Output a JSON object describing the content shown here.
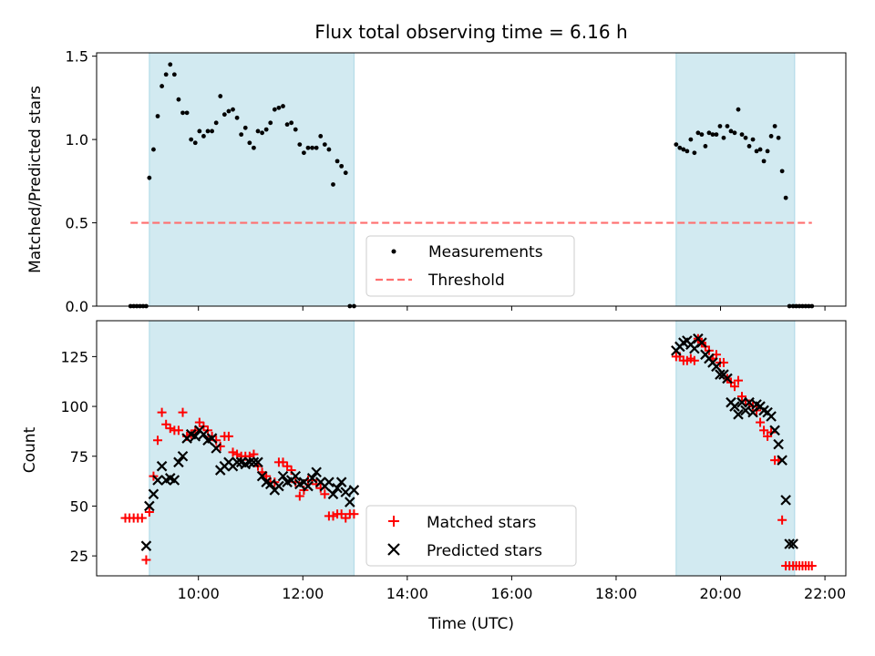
{
  "figure": {
    "title": "Flux total observing time = 6.16 h"
  },
  "colors": {
    "band": "#add8e6",
    "threshold": "#ff6f6f",
    "measurement": "#000000",
    "matched": "#ff0000",
    "predicted": "#000000"
  },
  "chart_data": [
    {
      "type": "scatter",
      "ylabel": "Matched/Predicted stars",
      "xlabel": "",
      "xlim": [
        8.05,
        22.4
      ],
      "ylim": [
        0.0,
        1.52
      ],
      "yticks": [
        0.0,
        0.5,
        1.0,
        1.5
      ],
      "ytick_labels": [
        "0.0",
        "0.5",
        "1.0",
        "1.5"
      ],
      "xticks": [
        10,
        12,
        14,
        16,
        18,
        20,
        22
      ],
      "grid": false,
      "legend_position": "bottom-center",
      "legend": [
        "Measurements",
        "Threshold"
      ],
      "shaded_intervals": [
        [
          9.06,
          12.98
        ],
        [
          19.15,
          21.42
        ]
      ],
      "threshold": {
        "name": "Threshold",
        "y": 0.5,
        "x": [
          8.7,
          21.75
        ]
      },
      "series": [
        {
          "name": "Measurements",
          "marker": "dot",
          "x": [
            8.7,
            8.76,
            8.82,
            8.88,
            8.94,
            9.0,
            9.06,
            9.14,
            9.22,
            9.3,
            9.38,
            9.46,
            9.54,
            9.62,
            9.7,
            9.78,
            9.86,
            9.94,
            10.02,
            10.1,
            10.18,
            10.26,
            10.34,
            10.42,
            10.5,
            10.58,
            10.66,
            10.74,
            10.82,
            10.9,
            10.98,
            11.06,
            11.14,
            11.22,
            11.3,
            11.38,
            11.46,
            11.54,
            11.62,
            11.7,
            11.78,
            11.86,
            11.94,
            12.02,
            12.1,
            12.18,
            12.26,
            12.34,
            12.42,
            12.5,
            12.58,
            12.66,
            12.74,
            12.82,
            12.9,
            12.98,
            19.15,
            19.22,
            19.29,
            19.36,
            19.43,
            19.5,
            19.57,
            19.64,
            19.71,
            19.78,
            19.85,
            19.92,
            19.99,
            20.06,
            20.13,
            20.2,
            20.27,
            20.34,
            20.41,
            20.48,
            20.55,
            20.62,
            20.69,
            20.76,
            20.83,
            20.9,
            20.97,
            21.04,
            21.11,
            21.18,
            21.25,
            21.32,
            21.39,
            21.45,
            21.51,
            21.57,
            21.63,
            21.69,
            21.75
          ],
          "y": [
            0.0,
            0.0,
            0.0,
            0.0,
            0.0,
            0.0,
            0.77,
            0.94,
            1.14,
            1.32,
            1.39,
            1.45,
            1.39,
            1.24,
            1.16,
            1.16,
            1.0,
            0.98,
            1.05,
            1.02,
            1.05,
            1.05,
            1.1,
            1.26,
            1.15,
            1.17,
            1.18,
            1.13,
            1.03,
            1.07,
            0.98,
            0.95,
            1.05,
            1.04,
            1.06,
            1.1,
            1.18,
            1.19,
            1.2,
            1.09,
            1.1,
            1.06,
            0.97,
            0.92,
            0.95,
            0.95,
            0.95,
            1.02,
            0.97,
            0.94,
            0.73,
            0.87,
            0.84,
            0.8,
            0.0,
            0.0,
            0.97,
            0.95,
            0.94,
            0.93,
            1.0,
            0.92,
            1.04,
            1.03,
            0.96,
            1.04,
            1.03,
            1.03,
            1.08,
            1.01,
            1.08,
            1.05,
            1.04,
            1.18,
            1.03,
            1.01,
            0.96,
            1.0,
            0.93,
            0.94,
            0.87,
            0.93,
            1.02,
            1.08,
            1.01,
            0.81,
            0.65,
            0.0,
            0.0,
            0.0,
            0.0,
            0.0,
            0.0,
            0.0,
            0.0
          ]
        }
      ]
    },
    {
      "type": "scatter",
      "ylabel": "Count",
      "xlabel": "Time (UTC)",
      "xlim": [
        8.05,
        22.4
      ],
      "ylim": [
        15,
        143
      ],
      "yticks": [
        25,
        50,
        75,
        100,
        125
      ],
      "ytick_labels": [
        "25",
        "50",
        "75",
        "100",
        "125"
      ],
      "xticks": [
        10,
        12,
        14,
        16,
        18,
        20,
        22
      ],
      "xtick_labels": [
        "10:00",
        "12:00",
        "14:00",
        "16:00",
        "18:00",
        "20:00",
        "22:00"
      ],
      "grid": false,
      "legend_position": "bottom-center",
      "legend": [
        "Matched stars",
        "Predicted stars"
      ],
      "shaded_intervals": [
        [
          9.06,
          12.98
        ],
        [
          19.15,
          21.42
        ]
      ],
      "series": [
        {
          "name": "Matched stars",
          "marker": "plus",
          "x": [
            8.6,
            8.68,
            8.76,
            8.84,
            8.92,
            9.0,
            9.06,
            9.14,
            9.22,
            9.3,
            9.38,
            9.46,
            9.54,
            9.62,
            9.7,
            9.78,
            9.86,
            9.94,
            10.02,
            10.1,
            10.18,
            10.26,
            10.34,
            10.42,
            10.5,
            10.58,
            10.66,
            10.74,
            10.82,
            10.9,
            10.98,
            11.06,
            11.14,
            11.22,
            11.3,
            11.38,
            11.46,
            11.54,
            11.62,
            11.7,
            11.78,
            11.86,
            11.94,
            12.02,
            12.1,
            12.18,
            12.26,
            12.34,
            12.42,
            12.5,
            12.58,
            12.66,
            12.74,
            12.82,
            12.9,
            12.98,
            19.15,
            19.22,
            19.29,
            19.36,
            19.43,
            19.5,
            19.57,
            19.64,
            19.71,
            19.78,
            19.85,
            19.92,
            19.99,
            20.06,
            20.13,
            20.2,
            20.27,
            20.34,
            20.41,
            20.48,
            20.55,
            20.62,
            20.69,
            20.76,
            20.83,
            20.9,
            20.97,
            21.04,
            21.11,
            21.18,
            21.25,
            21.32,
            21.39,
            21.45,
            21.51,
            21.57,
            21.63,
            21.69,
            21.75
          ],
          "y": [
            44,
            44,
            44,
            44,
            44,
            23,
            47,
            65,
            83,
            97,
            91,
            89,
            88,
            88,
            97,
            85,
            86,
            88,
            92,
            90,
            88,
            85,
            83,
            80,
            85,
            85,
            77,
            76,
            75,
            75,
            75,
            76,
            70,
            67,
            65,
            62,
            62,
            72,
            72,
            70,
            68,
            62,
            55,
            58,
            63,
            63,
            61,
            59,
            56,
            45,
            45,
            46,
            46,
            44,
            46,
            46,
            125,
            125,
            123,
            123,
            124,
            123,
            134,
            132,
            130,
            128,
            124,
            126,
            122,
            122,
            114,
            112,
            110,
            113,
            105,
            103,
            101,
            100,
            98,
            92,
            88,
            85,
            87,
            73,
            73,
            43,
            20,
            20,
            20,
            20,
            20,
            20,
            20,
            20,
            20
          ]
        },
        {
          "name": "Predicted stars",
          "marker": "x",
          "x": [
            9.0,
            9.06,
            9.14,
            9.22,
            9.3,
            9.38,
            9.46,
            9.54,
            9.62,
            9.7,
            9.78,
            9.86,
            9.94,
            10.02,
            10.1,
            10.18,
            10.26,
            10.34,
            10.42,
            10.5,
            10.58,
            10.66,
            10.74,
            10.82,
            10.9,
            10.98,
            11.06,
            11.14,
            11.22,
            11.3,
            11.38,
            11.46,
            11.54,
            11.62,
            11.7,
            11.78,
            11.86,
            11.94,
            12.02,
            12.1,
            12.18,
            12.26,
            12.34,
            12.42,
            12.5,
            12.58,
            12.66,
            12.74,
            12.82,
            12.9,
            12.98,
            19.15,
            19.22,
            19.29,
            19.36,
            19.43,
            19.5,
            19.57,
            19.64,
            19.71,
            19.78,
            19.85,
            19.92,
            19.99,
            20.06,
            20.13,
            20.2,
            20.27,
            20.34,
            20.41,
            20.48,
            20.55,
            20.62,
            20.69,
            20.76,
            20.83,
            20.9,
            20.97,
            21.04,
            21.11,
            21.18,
            21.25,
            21.32,
            21.39
          ],
          "y": [
            30,
            50,
            56,
            63,
            70,
            63,
            64,
            63,
            72,
            75,
            84,
            86,
            85,
            88,
            86,
            83,
            84,
            79,
            68,
            70,
            72,
            70,
            72,
            72,
            71,
            72,
            72,
            72,
            65,
            62,
            61,
            58,
            60,
            65,
            62,
            63,
            65,
            61,
            62,
            60,
            64,
            67,
            62,
            60,
            62,
            56,
            59,
            62,
            57,
            52,
            58,
            128,
            130,
            132,
            133,
            131,
            129,
            134,
            132,
            126,
            124,
            122,
            120,
            116,
            116,
            114,
            102,
            100,
            96,
            102,
            98,
            102,
            97,
            101,
            100,
            98,
            97,
            95,
            88,
            81,
            73,
            53,
            31,
            31
          ]
        }
      ]
    }
  ]
}
